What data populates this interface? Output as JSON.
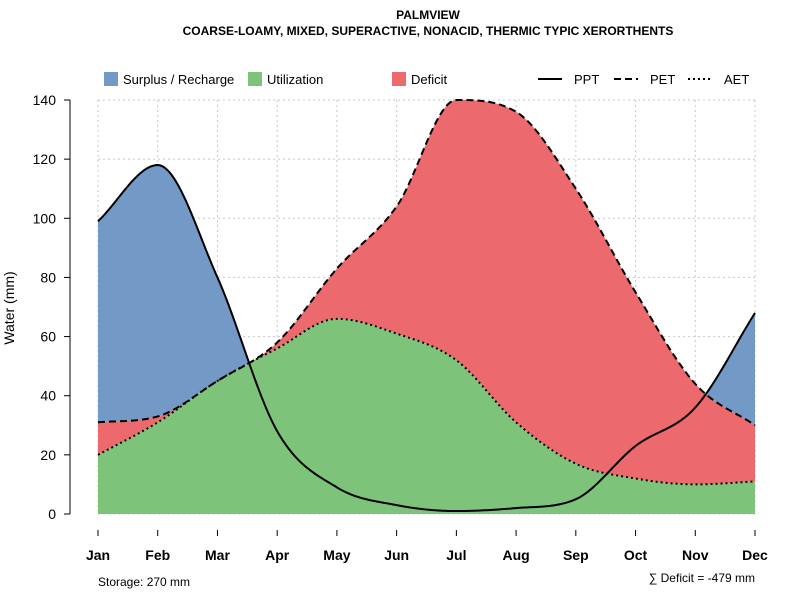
{
  "chart_data": {
    "type": "area",
    "title": "PALMVIEW",
    "subtitle": "COARSE-LOAMY, MIXED, SUPERACTIVE, NONACID, THERMIC TYPIC XERORTHENTS",
    "ylabel": "Water (mm)",
    "ylim": [
      0,
      140
    ],
    "yticks": [
      0,
      20,
      40,
      60,
      80,
      100,
      120,
      140
    ],
    "grid": true,
    "categories": [
      "Jan",
      "Feb",
      "Mar",
      "Apr",
      "May",
      "Jun",
      "Jul",
      "Aug",
      "Sep",
      "Oct",
      "Nov",
      "Dec"
    ],
    "series": [
      {
        "name": "PPT",
        "line": "solid",
        "values": [
          99,
          118,
          80,
          28,
          9,
          3,
          1,
          2,
          5,
          23,
          36,
          68
        ]
      },
      {
        "name": "PET",
        "line": "dashed",
        "values": [
          31,
          33,
          45,
          58,
          83,
          104,
          140,
          136,
          110,
          75,
          44,
          30
        ]
      },
      {
        "name": "AET",
        "line": "dotted",
        "values": [
          20,
          31,
          45,
          56,
          66,
          61,
          52,
          31,
          17,
          12,
          10,
          11
        ]
      }
    ],
    "regions": [
      {
        "name": "Surplus / Recharge",
        "color": "#7399c6"
      },
      {
        "name": "Utilization",
        "color": "#7dc47a"
      },
      {
        "name": "Deficit",
        "color": "#ec6a6d"
      }
    ],
    "legend_position": "top",
    "legend": {
      "regions": [
        "Surplus / Recharge",
        "Utilization",
        "Deficit"
      ],
      "lines": [
        "PPT",
        "PET",
        "AET"
      ]
    },
    "annotations": {
      "storage": "Storage: 270 mm",
      "deficit": "∑ Deficit = -479 mm"
    }
  }
}
